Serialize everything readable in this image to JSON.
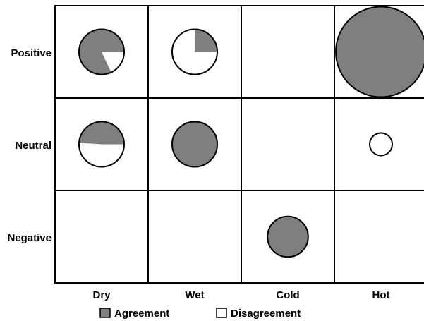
{
  "chart_data": {
    "type": "pie-matrix",
    "columns": [
      "Dry",
      "Wet",
      "Cold",
      "Hot"
    ],
    "rows": [
      "Positive",
      "Neutral",
      "Negative"
    ],
    "series": [
      {
        "name": "Agreement",
        "color": "#7f7f7f"
      },
      {
        "name": "Disagreement",
        "color": "#ffffff"
      }
    ],
    "cells": [
      {
        "row": "Positive",
        "col": "Dry",
        "size": 0.5,
        "agreement_pct": 82
      },
      {
        "row": "Positive",
        "col": "Wet",
        "size": 0.5,
        "agreement_pct": 25
      },
      {
        "row": "Positive",
        "col": "Hot",
        "size": 1.0,
        "agreement_pct": 100
      },
      {
        "row": "Neutral",
        "col": "Dry",
        "size": 0.5,
        "agreement_pct": 49
      },
      {
        "row": "Neutral",
        "col": "Wet",
        "size": 0.5,
        "agreement_pct": 100
      },
      {
        "row": "Neutral",
        "col": "Hot",
        "size": 0.25,
        "agreement_pct": 0
      },
      {
        "row": "Negative",
        "col": "Cold",
        "size": 0.45,
        "agreement_pct": 100
      }
    ]
  }
}
